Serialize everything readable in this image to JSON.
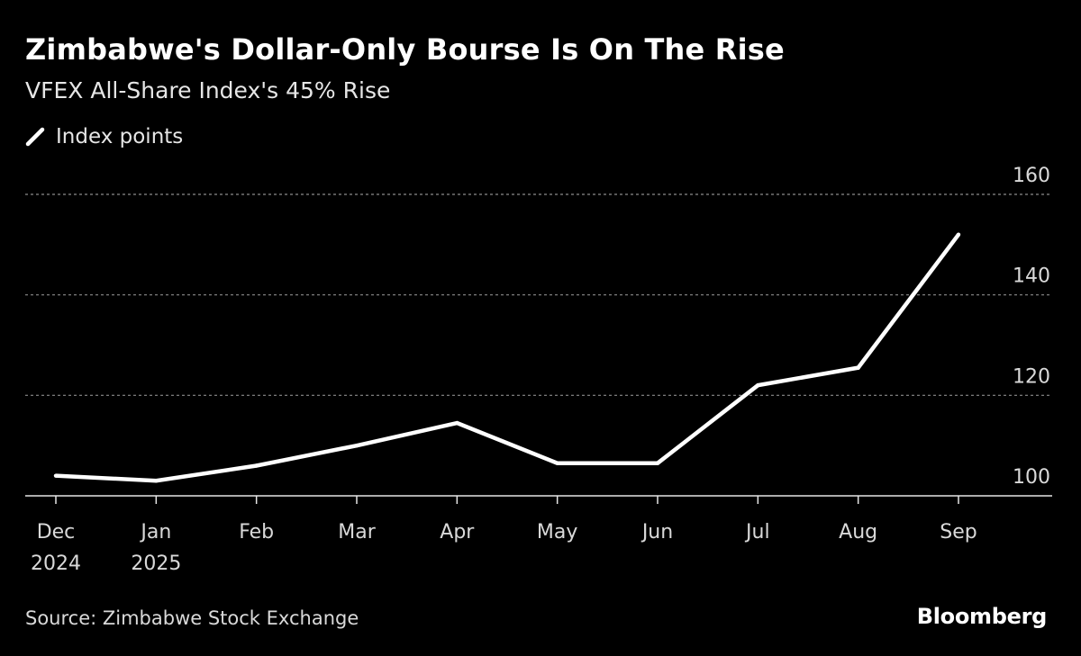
{
  "header": {
    "title": "Zimbabwe's Dollar-Only Bourse Is On The Rise",
    "subtitle": "VFEX All-Share Index's 45% Rise"
  },
  "legend": {
    "label": "Index points"
  },
  "footer": {
    "source": "Source: Zimbabwe Stock Exchange",
    "brand": "Bloomberg"
  },
  "colors": {
    "background": "#000000",
    "line": "#ffffff",
    "grid": "#8c8c8c",
    "text": "#d9d9d9"
  },
  "chart_data": {
    "type": "line",
    "title": "Zimbabwe's Dollar-Only Bourse Is On The Rise",
    "subtitle": "VFEX All-Share Index's 45% Rise",
    "x": [
      "Dec 2024",
      "Jan 2025",
      "Feb",
      "Mar",
      "Apr",
      "May",
      "Jun",
      "Jul",
      "Aug",
      "Sep"
    ],
    "x_tick_labels": [
      [
        "Dec",
        "2024"
      ],
      [
        "Jan",
        "2025"
      ],
      [
        "Feb"
      ],
      [
        "Mar"
      ],
      [
        "Apr"
      ],
      [
        "May"
      ],
      [
        "Jun"
      ],
      [
        "Jul"
      ],
      [
        "Aug"
      ],
      [
        "Sep"
      ]
    ],
    "series": [
      {
        "name": "Index points",
        "values": [
          104,
          103,
          106,
          110,
          114.5,
          106.5,
          106.5,
          122,
          125.5,
          152
        ]
      }
    ],
    "y_ticks": [
      100,
      120,
      140,
      160
    ],
    "ylim": [
      100,
      160
    ],
    "grid": true,
    "legend": "top-left",
    "xlabel": "",
    "ylabel": ""
  }
}
